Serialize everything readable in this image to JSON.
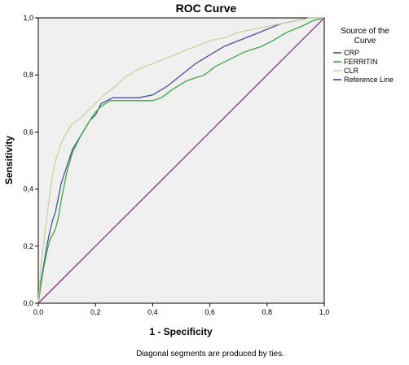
{
  "chart_data": {
    "type": "line",
    "title": "ROC Curve",
    "xlabel": "1 - Specificity",
    "ylabel": "Sensitivity",
    "xlim": [
      0,
      1
    ],
    "ylim": [
      0,
      1
    ],
    "xticks": [
      "0,0",
      "0,2",
      "0,4",
      "0,6",
      "0,8",
      "1,0"
    ],
    "yticks": [
      "0,0",
      "0,2",
      "0,4",
      "0,6",
      "0,8",
      "1,0"
    ],
    "grid": false,
    "legend": {
      "title_lines": [
        "Source of the",
        "Curve"
      ],
      "placement": "right"
    },
    "footnote": "Diagonal segments are produced by ties.",
    "colors": {
      "plot_bg": "#f0f0f0",
      "CRP": "#4a4fa0",
      "FERRITIN": "#3aa844",
      "CLR": "#c8d39a",
      "Reference Line": "#8b2a8b"
    },
    "series": [
      {
        "name": "CRP",
        "points": [
          [
            0,
            0
          ],
          [
            0.01,
            0.08
          ],
          [
            0.02,
            0.14
          ],
          [
            0.03,
            0.2
          ],
          [
            0.04,
            0.25
          ],
          [
            0.05,
            0.29
          ],
          [
            0.06,
            0.32
          ],
          [
            0.07,
            0.37
          ],
          [
            0.08,
            0.42
          ],
          [
            0.1,
            0.48
          ],
          [
            0.12,
            0.54
          ],
          [
            0.15,
            0.59
          ],
          [
            0.18,
            0.64
          ],
          [
            0.2,
            0.66
          ],
          [
            0.22,
            0.7
          ],
          [
            0.24,
            0.71
          ],
          [
            0.26,
            0.72
          ],
          [
            0.3,
            0.72
          ],
          [
            0.35,
            0.72
          ],
          [
            0.4,
            0.73
          ],
          [
            0.45,
            0.76
          ],
          [
            0.5,
            0.8
          ],
          [
            0.55,
            0.84
          ],
          [
            0.6,
            0.87
          ],
          [
            0.65,
            0.9
          ],
          [
            0.7,
            0.92
          ],
          [
            0.75,
            0.94
          ],
          [
            0.8,
            0.96
          ],
          [
            0.85,
            0.98
          ],
          [
            0.9,
            0.99
          ],
          [
            0.95,
            1.0
          ],
          [
            1.0,
            1.0
          ]
        ]
      },
      {
        "name": "FERRITIN",
        "points": [
          [
            0,
            0
          ],
          [
            0.01,
            0.07
          ],
          [
            0.02,
            0.13
          ],
          [
            0.03,
            0.18
          ],
          [
            0.04,
            0.22
          ],
          [
            0.06,
            0.26
          ],
          [
            0.07,
            0.3
          ],
          [
            0.08,
            0.36
          ],
          [
            0.1,
            0.46
          ],
          [
            0.12,
            0.53
          ],
          [
            0.15,
            0.59
          ],
          [
            0.18,
            0.64
          ],
          [
            0.2,
            0.67
          ],
          [
            0.22,
            0.69
          ],
          [
            0.25,
            0.71
          ],
          [
            0.3,
            0.71
          ],
          [
            0.35,
            0.71
          ],
          [
            0.4,
            0.71
          ],
          [
            0.43,
            0.72
          ],
          [
            0.47,
            0.75
          ],
          [
            0.52,
            0.78
          ],
          [
            0.58,
            0.8
          ],
          [
            0.62,
            0.83
          ],
          [
            0.68,
            0.86
          ],
          [
            0.72,
            0.88
          ],
          [
            0.78,
            0.9
          ],
          [
            0.82,
            0.92
          ],
          [
            0.87,
            0.95
          ],
          [
            0.92,
            0.97
          ],
          [
            0.96,
            0.99
          ],
          [
            1.0,
            1.0
          ]
        ]
      },
      {
        "name": "CLR",
        "points": [
          [
            0,
            0
          ],
          [
            0.01,
            0.14
          ],
          [
            0.02,
            0.22
          ],
          [
            0.03,
            0.3
          ],
          [
            0.04,
            0.38
          ],
          [
            0.05,
            0.45
          ],
          [
            0.06,
            0.5
          ],
          [
            0.08,
            0.56
          ],
          [
            0.1,
            0.6
          ],
          [
            0.12,
            0.63
          ],
          [
            0.15,
            0.65
          ],
          [
            0.18,
            0.68
          ],
          [
            0.2,
            0.7
          ],
          [
            0.23,
            0.73
          ],
          [
            0.27,
            0.76
          ],
          [
            0.3,
            0.79
          ],
          [
            0.35,
            0.82
          ],
          [
            0.4,
            0.84
          ],
          [
            0.45,
            0.86
          ],
          [
            0.5,
            0.88
          ],
          [
            0.55,
            0.9
          ],
          [
            0.6,
            0.92
          ],
          [
            0.65,
            0.93
          ],
          [
            0.7,
            0.95
          ],
          [
            0.75,
            0.96
          ],
          [
            0.8,
            0.97
          ],
          [
            0.85,
            0.98
          ],
          [
            0.9,
            0.99
          ],
          [
            0.95,
            1.0
          ],
          [
            1.0,
            1.0
          ]
        ]
      },
      {
        "name": "Reference Line",
        "points": [
          [
            0,
            0
          ],
          [
            1,
            1
          ]
        ]
      }
    ]
  }
}
